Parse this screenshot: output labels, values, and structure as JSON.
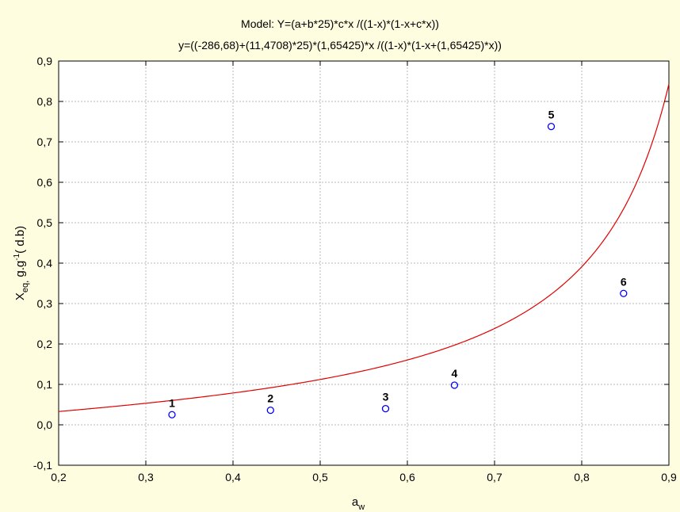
{
  "chart_data": {
    "type": "scatter",
    "title": "Model: Y=(a+b*25)*c*x /((1-x)*(1-x+c*x))",
    "subtitle": "y=((-286,68)+(11,4708)*25)*(1,65425)*x /((1-x)*(1-x+(1,65425)*x))",
    "xlabel": {
      "main": "a",
      "sub": "w"
    },
    "ylabel": {
      "main": "X",
      "sub": "eq,",
      "mid": " g.g",
      "sup": "-1",
      "tail": "( d.b)"
    },
    "xlim": [
      0.2,
      0.9
    ],
    "ylim": [
      -0.1,
      0.9
    ],
    "x_ticks": [
      "0,2",
      "0,3",
      "0,4",
      "0,5",
      "0,6",
      "0,7",
      "0,8",
      "0,9"
    ],
    "y_ticks": [
      "-0,1",
      "0,0",
      "0,1",
      "0,2",
      "0,3",
      "0,4",
      "0,5",
      "0,6",
      "0,7",
      "0,8",
      "0,9"
    ],
    "grid": true,
    "points": [
      {
        "label": "1",
        "x": 0.33,
        "y": 0.025
      },
      {
        "label": "2",
        "x": 0.443,
        "y": 0.036
      },
      {
        "label": "3",
        "x": 0.575,
        "y": 0.04
      },
      {
        "label": "4",
        "x": 0.654,
        "y": 0.098
      },
      {
        "label": "5",
        "x": 0.765,
        "y": 0.738
      },
      {
        "label": "6",
        "x": 0.848,
        "y": 0.325
      }
    ],
    "model": {
      "a": -286.68,
      "b": 11.4708,
      "c": 1.65425,
      "t": 25
    },
    "colors": {
      "points": "#0000ff",
      "curve": "#e00000",
      "grid": "#b8b8b8",
      "background": "#fffde0",
      "plot_background": "#ffffff"
    }
  }
}
